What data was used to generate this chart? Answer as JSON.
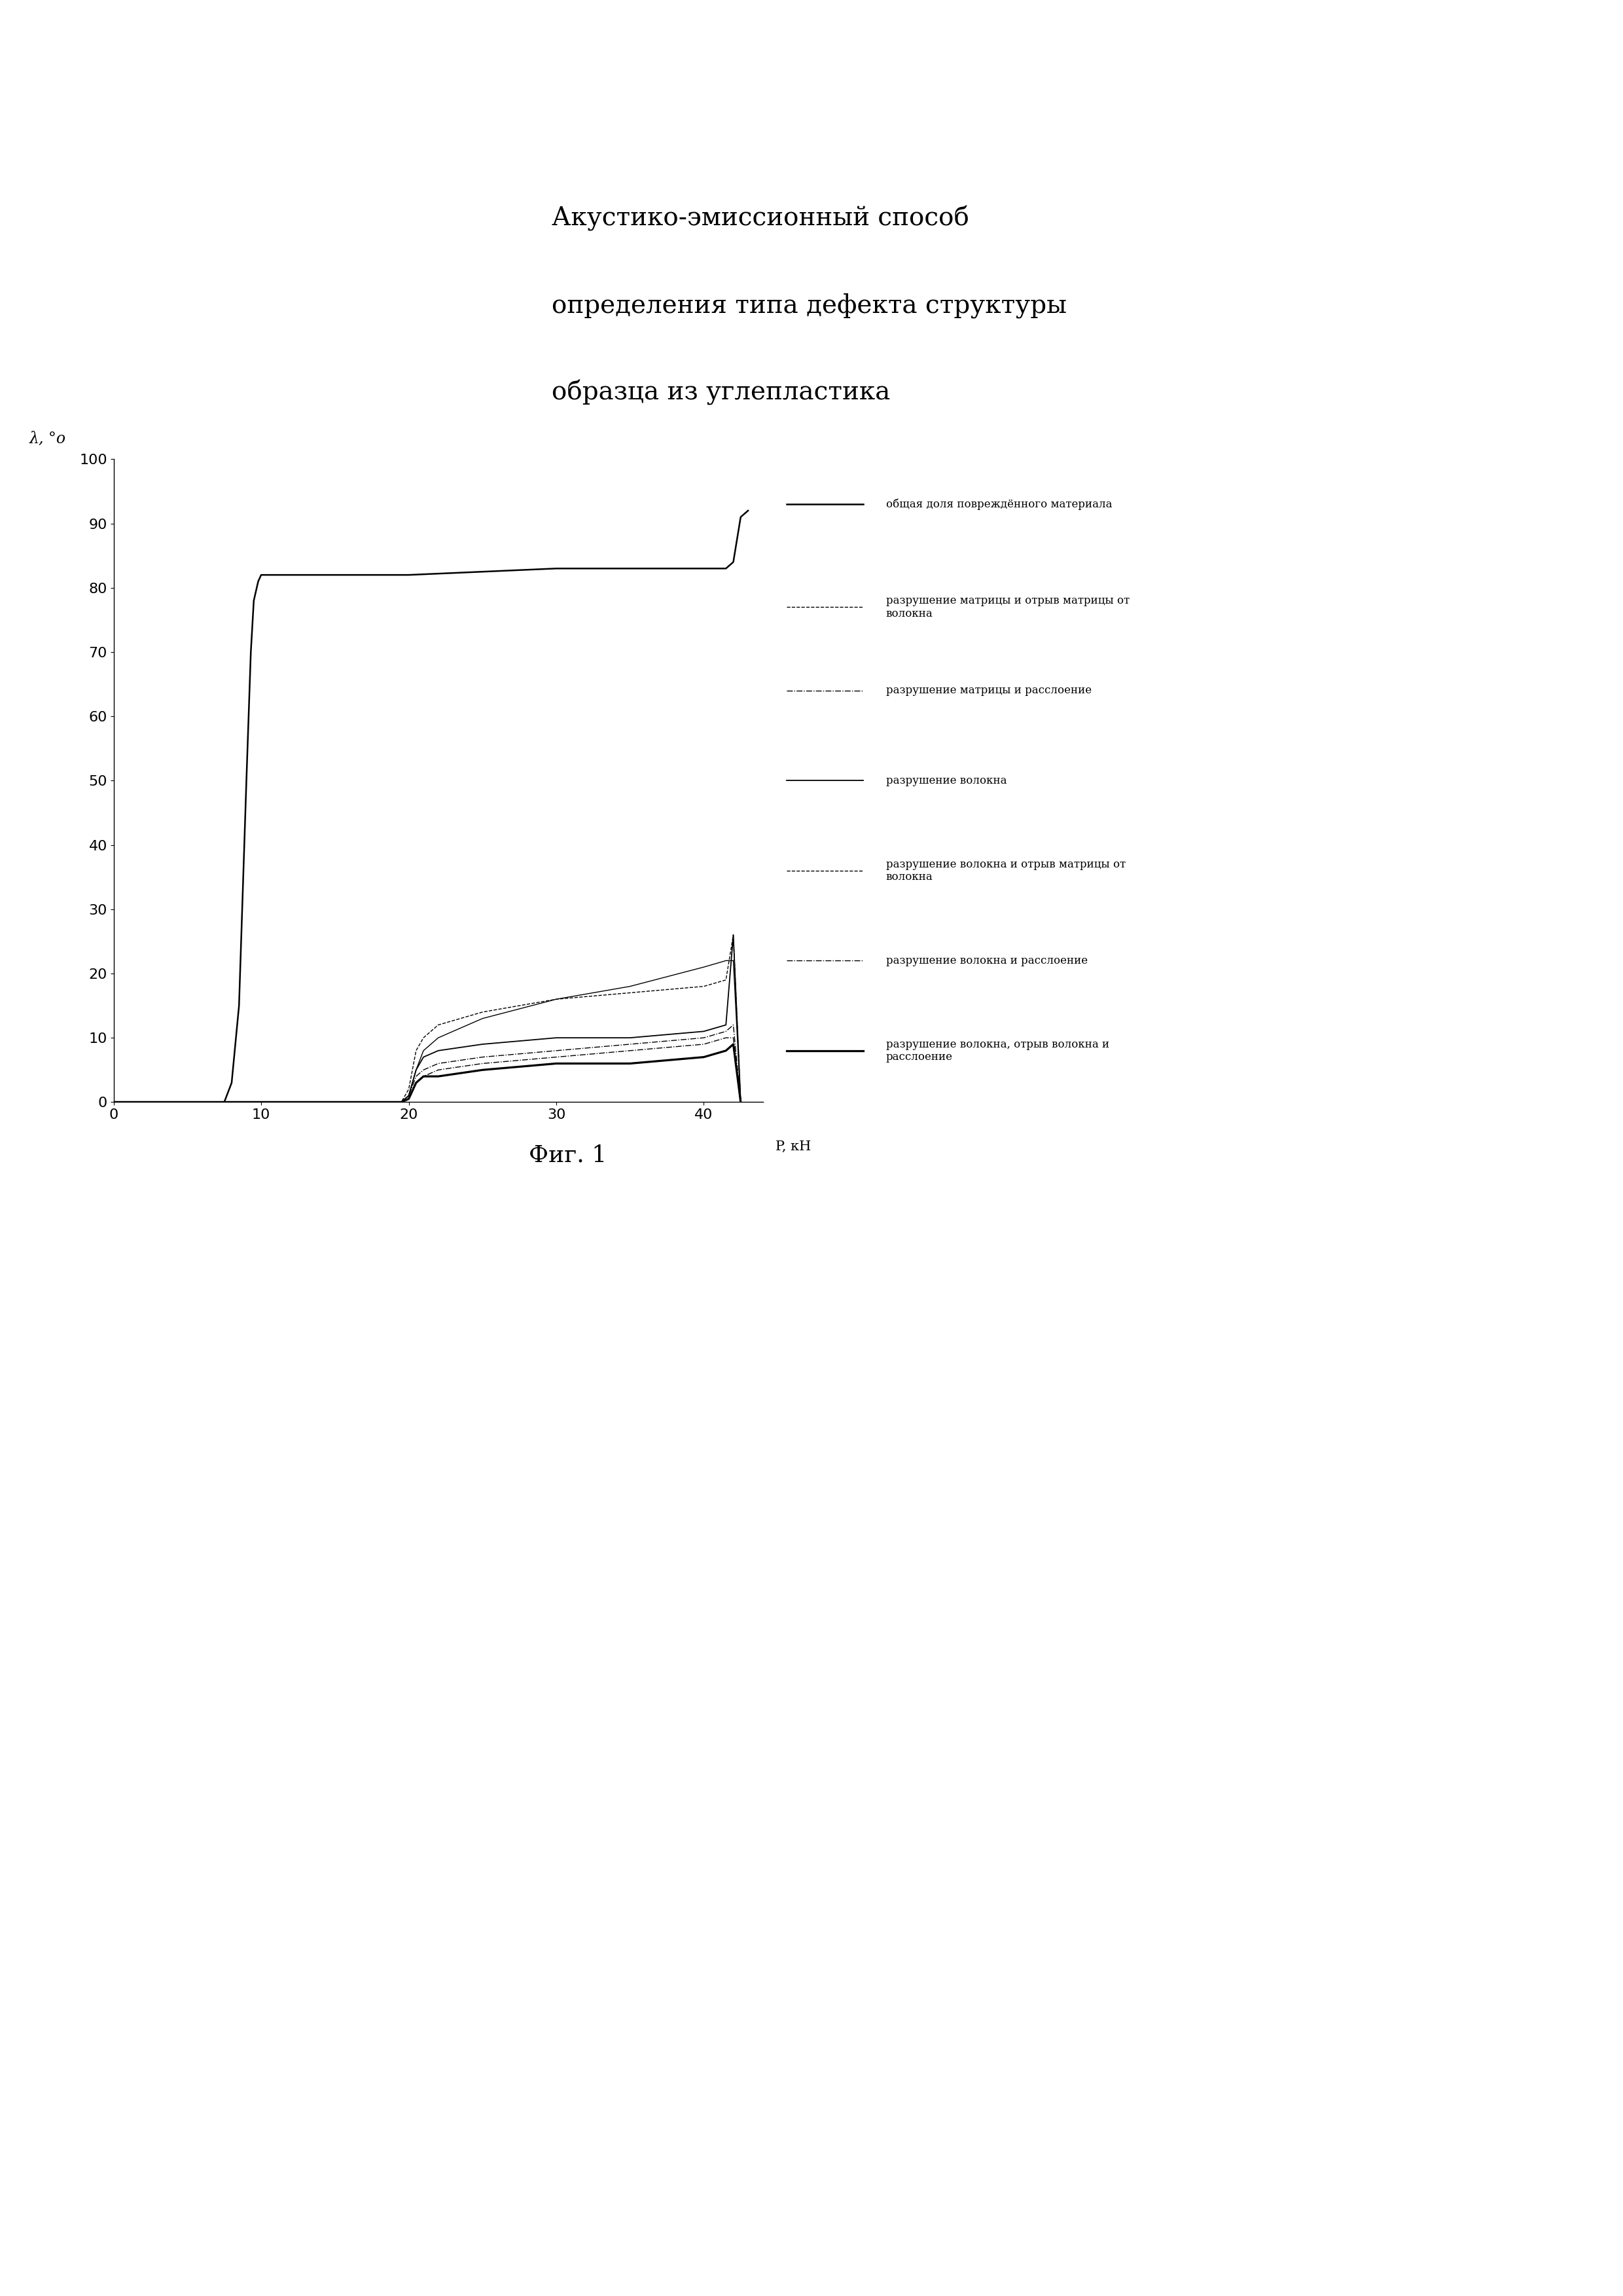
{
  "title_line1": "Акустико-эмиссионный способ",
  "title_line2": "определения типа дефекта структуры",
  "title_line3": "образца из углепластика",
  "ylabel": "λ, °о",
  "xlabel": "P, кН",
  "xlim": [
    0,
    44
  ],
  "ylim": [
    0,
    100
  ],
  "xticks": [
    0,
    10,
    20,
    30,
    40
  ],
  "yticks": [
    0,
    10,
    20,
    30,
    40,
    50,
    60,
    70,
    80,
    90,
    100
  ],
  "caption": "Фиг. 1",
  "legend_entries": [
    "общая доля повреждённого материала",
    "разрушение матрицы и отрыв матрицы от\nволокна",
    "разрушение матрицы и расслоение",
    "разрушение волокна",
    "разрушение волокна и отрыв матрицы от\nволокна",
    "разрушение волокна и расслоение",
    "разрушение волокна, отрыв волокна и\nрасслоение"
  ],
  "background_color": "#ffffff",
  "text_color": "#000000",
  "curve1_x": [
    0,
    7.5,
    8.0,
    8.5,
    9.0,
    9.3,
    9.5,
    9.8,
    10.0,
    10.5,
    11.0,
    20,
    30,
    40,
    41.5,
    42.0,
    42.5,
    43.0
  ],
  "curve1_y": [
    0,
    0,
    3,
    15,
    50,
    70,
    78,
    81,
    82,
    82,
    82,
    82,
    83,
    83,
    83,
    84,
    91,
    92
  ],
  "curve2_x": [
    0,
    19.5,
    20.0,
    20.5,
    21,
    22,
    25,
    30,
    35,
    40,
    41.5,
    42.0,
    42.5
  ],
  "curve2_y": [
    0,
    0,
    2,
    8,
    10,
    12,
    14,
    16,
    17,
    18,
    19,
    26,
    0
  ],
  "curve3_x": [
    0,
    19.5,
    20.0,
    20.5,
    21,
    22,
    25,
    30,
    35,
    40,
    41.5,
    42.0,
    42.5
  ],
  "curve3_y": [
    0,
    0,
    1,
    4,
    5,
    6,
    7,
    8,
    9,
    10,
    11,
    12,
    0
  ],
  "curve4_x": [
    0,
    19.5,
    20.0,
    20.5,
    21,
    22,
    25,
    30,
    35,
    40,
    41.5,
    42.0,
    42.5
  ],
  "curve4_y": [
    0,
    0,
    1,
    5,
    7,
    8,
    9,
    10,
    10,
    11,
    12,
    26,
    0
  ],
  "curve5_x": [
    0,
    19.5,
    20.0,
    20.5,
    21,
    22,
    25,
    30,
    35,
    40,
    41.5,
    42.0,
    42.5
  ],
  "curve5_y": [
    0,
    0,
    1,
    5,
    8,
    10,
    13,
    16,
    18,
    21,
    22,
    22,
    0
  ],
  "curve6_x": [
    0,
    19.5,
    20.0,
    20.5,
    21,
    22,
    25,
    30,
    35,
    40,
    41.5,
    42.0,
    42.5
  ],
  "curve6_y": [
    0,
    0,
    0.5,
    3,
    4,
    5,
    6,
    7,
    8,
    9,
    10,
    10,
    0
  ],
  "curve7_x": [
    0,
    19.5,
    20.0,
    20.5,
    21,
    22,
    25,
    30,
    35,
    40,
    41.5,
    42.0,
    42.5
  ],
  "curve7_y": [
    0,
    0,
    0.5,
    3,
    4,
    4,
    5,
    6,
    6,
    7,
    8,
    9,
    0
  ]
}
